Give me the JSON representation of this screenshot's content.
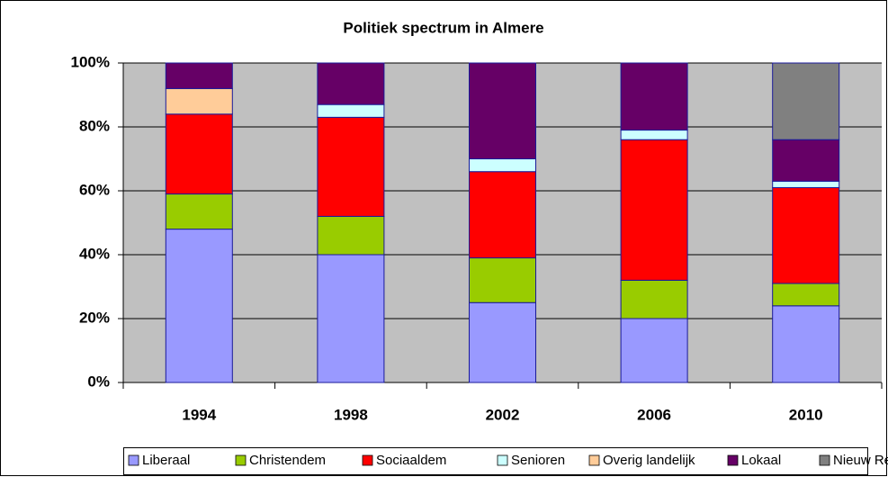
{
  "chart_data": {
    "type": "stacked_bar_percent",
    "title": "Politiek spectrum in Almere",
    "categories": [
      "1994",
      "1998",
      "2002",
      "2006",
      "2010"
    ],
    "series": [
      {
        "name": "Liberaal",
        "color": "#9999ff",
        "values": [
          48,
          40,
          25,
          20,
          24
        ]
      },
      {
        "name": "Christendem",
        "color": "#99cc00",
        "values": [
          11,
          12,
          14,
          12,
          7
        ]
      },
      {
        "name": "Sociaaldem",
        "color": "#ff0000",
        "values": [
          25,
          31,
          27,
          44,
          30
        ]
      },
      {
        "name": "Senioren",
        "color": "#ccffff",
        "values": [
          0,
          4,
          4,
          3,
          2
        ]
      },
      {
        "name": "Overig landelijk",
        "color": "#ffcc99",
        "values": [
          8,
          0,
          0,
          0,
          0
        ]
      },
      {
        "name": "Lokaal",
        "color": "#660066",
        "values": [
          8,
          13,
          30,
          21,
          13
        ]
      },
      {
        "name": "Nieuw Rechts",
        "color": "#808080",
        "values": [
          0,
          0,
          0,
          0,
          24
        ]
      }
    ],
    "ylim": [
      0,
      100
    ],
    "yticks": [
      {
        "value": 0,
        "label": "0%"
      },
      {
        "value": 20,
        "label": "20%"
      },
      {
        "value": 40,
        "label": "40%"
      },
      {
        "value": 60,
        "label": "60%"
      },
      {
        "value": 80,
        "label": "80%"
      },
      {
        "value": 100,
        "label": "100%"
      }
    ],
    "grid": true
  }
}
